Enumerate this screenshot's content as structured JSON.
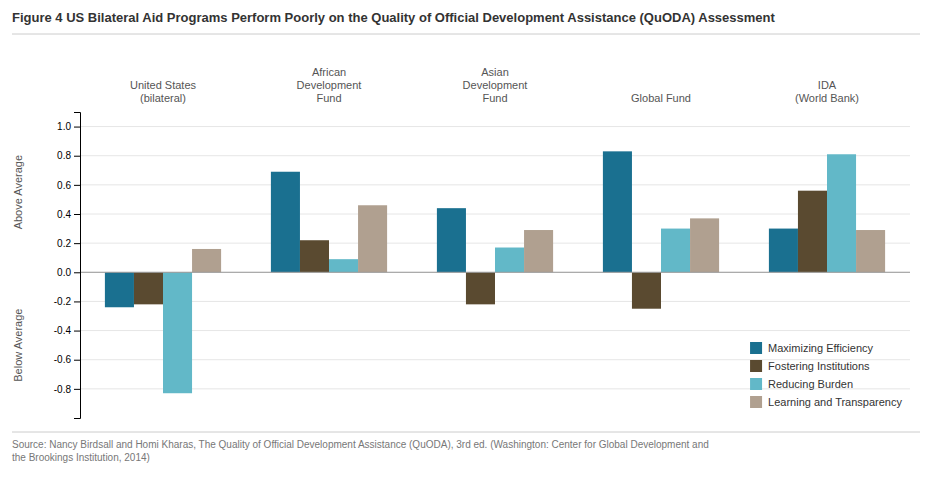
{
  "chart_data": {
    "type": "bar",
    "title": "Figure 4  US Bilateral Aid Programs Perform Poorly on the Quality of Official Development Assistance (QuODA) Assessment",
    "categories": [
      "United States\n(bilateral)",
      "African\nDevelopment\nFund",
      "Asian\nDevelopment\nFund",
      "Global Fund",
      "IDA\n(World Bank)"
    ],
    "series": [
      {
        "name": "Maximizing Efficiency",
        "color": "#1a7090",
        "values": [
          -0.24,
          0.69,
          0.44,
          0.83,
          0.3
        ]
      },
      {
        "name": "Fostering Institutions",
        "color": "#5a4a30",
        "values": [
          -0.22,
          0.22,
          -0.22,
          -0.25,
          0.56
        ]
      },
      {
        "name": "Reducing Burden",
        "color": "#62b8c8",
        "values": [
          -0.83,
          0.09,
          0.17,
          0.3,
          0.81
        ]
      },
      {
        "name": "Learning and Transparency",
        "color": "#b0a090",
        "values": [
          0.16,
          0.46,
          0.29,
          0.37,
          0.29
        ]
      }
    ],
    "ylim": [
      -1.0,
      1.1
    ],
    "yticks": [
      -0.8,
      -0.6,
      -0.4,
      -0.2,
      {
        "value": 0,
        "label": "0.0"
      },
      0.2,
      0.4,
      0.6,
      0.8,
      {
        "value": 1,
        "label": "1.0"
      }
    ],
    "grid": true,
    "legend": "lower right",
    "annotations": [
      "Above Average",
      "Below Average",
      "Source: Nancy Birdsall and Homi Kharas, The Quality of Official Development Assistance (QuODA), 3rd ed. (Washington: Center for Global Development and\nthe Brookings Institution, 2014)"
    ]
  }
}
